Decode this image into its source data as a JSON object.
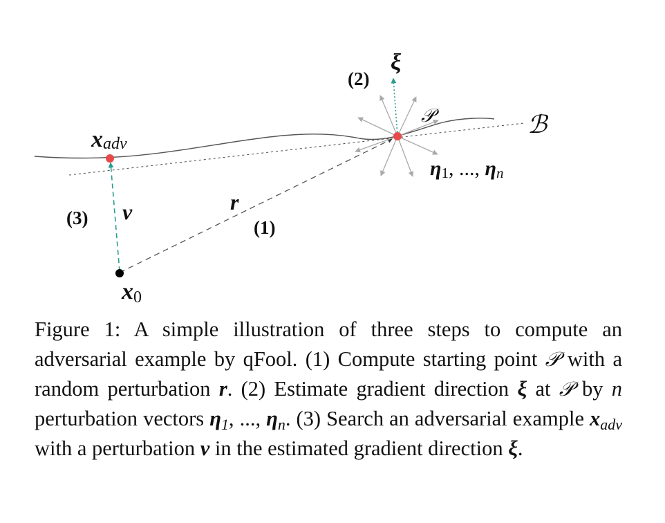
{
  "figure": {
    "labels": {
      "x_adv_base": "x",
      "x_adv_sub": "adv",
      "x0_base": "x",
      "x0_sub": "0",
      "xi": "ξ",
      "step1": "(1)",
      "step2": "(2)",
      "step3": "(3)",
      "r": "r",
      "v": "v",
      "P": "𝒫",
      "B": "ℬ",
      "eta_prefix": "η",
      "eta_first_sub": "1",
      "eta_sep": ", ..., ",
      "eta_last_sub": "n"
    },
    "colors": {
      "boundary_curve": "#555555",
      "dotted_line": "#555555",
      "dashed_r": "#555555",
      "teal_arrow": "#2a9d8f",
      "gray_arrows": "#a9a9a9",
      "red_points": "#e84a4a",
      "origin_point": "#000000"
    }
  },
  "caption": {
    "prefix": "Figure 1:",
    "s1": " A simple illustration of three steps to compute an adversarial example by qFool. (1) Compute starting point ",
    "P1": "𝒫",
    "s2": " with a random perturbation ",
    "r": "r",
    "s3": ". (2) Estimate gradient direc­tion ",
    "xi1": "ξ",
    "s4": " at ",
    "P2": "𝒫",
    "s5": " by ",
    "n": "n",
    "s6": " perturbation vectors ",
    "eta1": "η",
    "eta1_sub": "1",
    "s7": ", ..., ",
    "etan": "η",
    "etan_sub": "n",
    "s8": ". (3) Search an adversarial example ",
    "xadv": "x",
    "xadv_sub": "adv",
    "s9": " with a perturbation ",
    "v": "v",
    "s10": " in the estimated gradient direction ",
    "xi2": "ξ",
    "s11": "."
  }
}
